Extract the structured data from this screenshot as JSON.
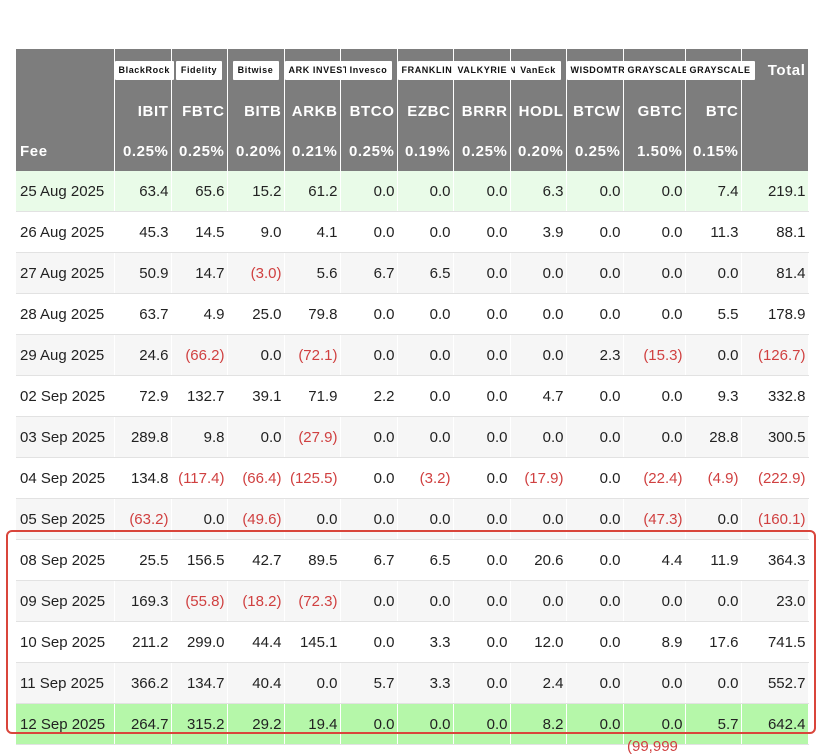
{
  "chart_data": {
    "type": "table",
    "issuers": [
      "BlackRock",
      "Fidelity",
      "Bitwise",
      "ARK INVEST",
      "Invesco",
      "FRANKLIN TEMPLETON",
      "VALKYRIE",
      "VanEck",
      "WISDOMTREE",
      "GRAYSCALE",
      "GRAYSCALE"
    ],
    "total_label": "Total",
    "tickers": [
      "IBIT",
      "FBTC",
      "BITB",
      "ARKB",
      "BTCO",
      "EZBC",
      "BRRR",
      "HODL",
      "BTCW",
      "GBTC",
      "BTC"
    ],
    "fee_label": "Fee",
    "fees": [
      "0.25%",
      "0.25%",
      "0.20%",
      "0.21%",
      "0.25%",
      "0.19%",
      "0.25%",
      "0.20%",
      "0.25%",
      "1.50%",
      "0.15%"
    ],
    "rows": [
      {
        "date": "25 Aug 2025",
        "values": [
          "63.4",
          "65.6",
          "15.2",
          "61.2",
          "0.0",
          "0.0",
          "0.0",
          "6.3",
          "0.0",
          "0.0",
          "7.4",
          "219.1"
        ],
        "style": "light"
      },
      {
        "date": "26 Aug 2025",
        "values": [
          "45.3",
          "14.5",
          "9.0",
          "4.1",
          "0.0",
          "0.0",
          "0.0",
          "3.9",
          "0.0",
          "0.0",
          "11.3",
          "88.1"
        ],
        "style": "white"
      },
      {
        "date": "27 Aug 2025",
        "values": [
          "50.9",
          "14.7",
          "(3.0)",
          "5.6",
          "6.7",
          "6.5",
          "0.0",
          "0.0",
          "0.0",
          "0.0",
          "0.0",
          "81.4"
        ],
        "style": "grey"
      },
      {
        "date": "28 Aug 2025",
        "values": [
          "63.7",
          "4.9",
          "25.0",
          "79.8",
          "0.0",
          "0.0",
          "0.0",
          "0.0",
          "0.0",
          "0.0",
          "5.5",
          "178.9"
        ],
        "style": "white"
      },
      {
        "date": "29 Aug 2025",
        "values": [
          "24.6",
          "(66.2)",
          "0.0",
          "(72.1)",
          "0.0",
          "0.0",
          "0.0",
          "0.0",
          "2.3",
          "(15.3)",
          "0.0",
          "(126.7)"
        ],
        "style": "grey"
      },
      {
        "date": "02 Sep 2025",
        "values": [
          "72.9",
          "132.7",
          "39.1",
          "71.9",
          "2.2",
          "0.0",
          "0.0",
          "4.7",
          "0.0",
          "0.0",
          "9.3",
          "332.8"
        ],
        "style": "white"
      },
      {
        "date": "03 Sep 2025",
        "values": [
          "289.8",
          "9.8",
          "0.0",
          "(27.9)",
          "0.0",
          "0.0",
          "0.0",
          "0.0",
          "0.0",
          "0.0",
          "28.8",
          "300.5"
        ],
        "style": "grey"
      },
      {
        "date": "04 Sep 2025",
        "values": [
          "134.8",
          "(117.4)",
          "(66.4)",
          "(125.5)",
          "0.0",
          "(3.2)",
          "0.0",
          "(17.9)",
          "0.0",
          "(22.4)",
          "(4.9)",
          "(222.9)"
        ],
        "style": "white"
      },
      {
        "date": "05 Sep 2025",
        "values": [
          "(63.2)",
          "0.0",
          "(49.6)",
          "0.0",
          "0.0",
          "0.0",
          "0.0",
          "0.0",
          "0.0",
          "(47.3)",
          "0.0",
          "(160.1)"
        ],
        "style": "grey"
      },
      {
        "date": "08 Sep 2025",
        "values": [
          "25.5",
          "156.5",
          "42.7",
          "89.5",
          "6.7",
          "6.5",
          "0.0",
          "20.6",
          "0.0",
          "4.4",
          "11.9",
          "364.3"
        ],
        "style": "white"
      },
      {
        "date": "09 Sep 2025",
        "values": [
          "169.3",
          "(55.8)",
          "(18.2)",
          "(72.3)",
          "0.0",
          "0.0",
          "0.0",
          "0.0",
          "0.0",
          "0.0",
          "0.0",
          "23.0"
        ],
        "style": "grey"
      },
      {
        "date": "10 Sep 2025",
        "values": [
          "211.2",
          "299.0",
          "44.4",
          "145.1",
          "0.0",
          "3.3",
          "0.0",
          "12.0",
          "0.0",
          "8.9",
          "17.6",
          "741.5"
        ],
        "style": "white"
      },
      {
        "date": "11 Sep 2025",
        "values": [
          "366.2",
          "134.7",
          "40.4",
          "0.0",
          "5.7",
          "3.3",
          "0.0",
          "2.4",
          "0.0",
          "0.0",
          "0.0",
          "552.7"
        ],
        "style": "grey"
      },
      {
        "date": "12 Sep 2025",
        "values": [
          "264.7",
          "315.2",
          "29.2",
          "19.4",
          "0.0",
          "0.0",
          "0.0",
          "8.2",
          "0.0",
          "0.0",
          "5.7",
          "642.4"
        ],
        "style": "bright"
      }
    ],
    "highlighted_rows": [
      "08 Sep 2025",
      "09 Sep 2025",
      "10 Sep 2025",
      "11 Sep 2025",
      "12 Sep 2025"
    ],
    "cut_off_text": "(99,999"
  },
  "colors": {
    "header_bg": "#7d7d7d",
    "negative": "#d04040",
    "row_light_green": "#e9fbe8",
    "row_bright_green": "#b5f7a9",
    "highlight_border": "#d9453b"
  }
}
